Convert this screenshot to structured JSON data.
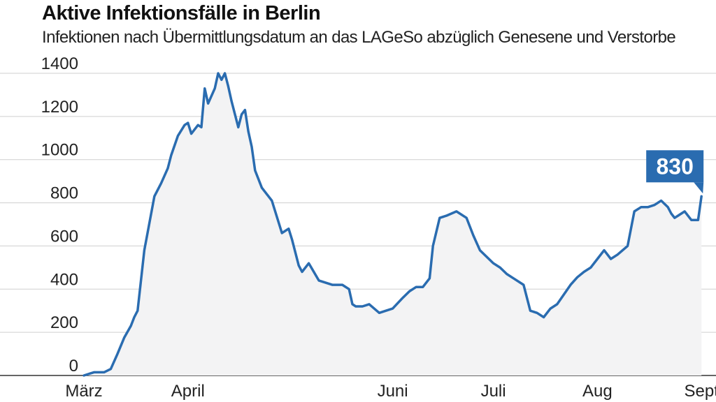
{
  "chart_data": {
    "type": "area",
    "title": "Aktive Infektionsfälle in Berlin",
    "subtitle": "Infektionen nach Übermittlungsdatum an das LAGeSo abzüglich Genesene und Verstorbe",
    "xlabel": "",
    "ylabel": "",
    "ylim": [
      0,
      1400
    ],
    "yticks": [
      0,
      200,
      400,
      600,
      800,
      1000,
      1200,
      1400
    ],
    "xticks": [
      "März",
      "April",
      "Juni",
      "Juli",
      "Aug",
      "Sept"
    ],
    "grid": true,
    "series_color": "#2a6cb0",
    "fill_color": "#f3f3f4",
    "callout": {
      "label": "830",
      "value": 830,
      "color": "#2a6cb0"
    },
    "series": [
      {
        "x": [
          "2020-03-01",
          "2020-03-04",
          "2020-03-07",
          "2020-03-09",
          "2020-03-11",
          "2020-03-13",
          "2020-03-15",
          "2020-03-16",
          "2020-03-17",
          "2020-03-19",
          "2020-03-22",
          "2020-03-24",
          "2020-03-26",
          "2020-03-27",
          "2020-03-29",
          "2020-03-31",
          "2020-04-01",
          "2020-04-02",
          "2020-04-04",
          "2020-04-05",
          "2020-04-06",
          "2020-04-07",
          "2020-04-09",
          "2020-04-10",
          "2020-04-11",
          "2020-04-12",
          "2020-04-13",
          "2020-04-14",
          "2020-04-16",
          "2020-04-17",
          "2020-04-18",
          "2020-04-19",
          "2020-04-20",
          "2020-04-21",
          "2020-04-23",
          "2020-04-26",
          "2020-04-29",
          "2020-05-01",
          "2020-05-02",
          "2020-05-04",
          "2020-05-05",
          "2020-05-07",
          "2020-05-10",
          "2020-05-14",
          "2020-05-17",
          "2020-05-19",
          "2020-05-20",
          "2020-05-21",
          "2020-05-23",
          "2020-05-25",
          "2020-05-28",
          "2020-06-01",
          "2020-06-04",
          "2020-06-06",
          "2020-06-08",
          "2020-06-10",
          "2020-06-12",
          "2020-06-13",
          "2020-06-15",
          "2020-06-17",
          "2020-06-20",
          "2020-06-23",
          "2020-06-25",
          "2020-06-27",
          "2020-07-01",
          "2020-07-03",
          "2020-07-05",
          "2020-07-07",
          "2020-07-10",
          "2020-07-12",
          "2020-07-14",
          "2020-07-16",
          "2020-07-18",
          "2020-07-20",
          "2020-07-24",
          "2020-07-26",
          "2020-07-28",
          "2020-07-30",
          "2020-08-01",
          "2020-08-03",
          "2020-08-05",
          "2020-08-07",
          "2020-08-10",
          "2020-08-12",
          "2020-08-14",
          "2020-08-16",
          "2020-08-18",
          "2020-08-20",
          "2020-08-22",
          "2020-08-23",
          "2020-08-24",
          "2020-08-25",
          "2020-08-27",
          "2020-08-29",
          "2020-08-31",
          "2020-09-01"
        ],
        "y": [
          0,
          15,
          15,
          30,
          100,
          175,
          230,
          270,
          300,
          580,
          830,
          890,
          960,
          1020,
          1110,
          1160,
          1170,
          1120,
          1160,
          1150,
          1330,
          1260,
          1330,
          1400,
          1370,
          1400,
          1340,
          1270,
          1150,
          1210,
          1230,
          1130,
          1060,
          950,
          870,
          810,
          660,
          680,
          630,
          510,
          480,
          520,
          440,
          420,
          420,
          400,
          330,
          320,
          320,
          330,
          290,
          310,
          360,
          390,
          410,
          410,
          450,
          600,
          730,
          740,
          760,
          730,
          650,
          580,
          520,
          500,
          470,
          450,
          420,
          300,
          290,
          270,
          310,
          330,
          420,
          455,
          480,
          500,
          540,
          580,
          540,
          560,
          600,
          760,
          780,
          780,
          790,
          810,
          780,
          750,
          730,
          740,
          760,
          720,
          720,
          830
        ]
      }
    ]
  }
}
